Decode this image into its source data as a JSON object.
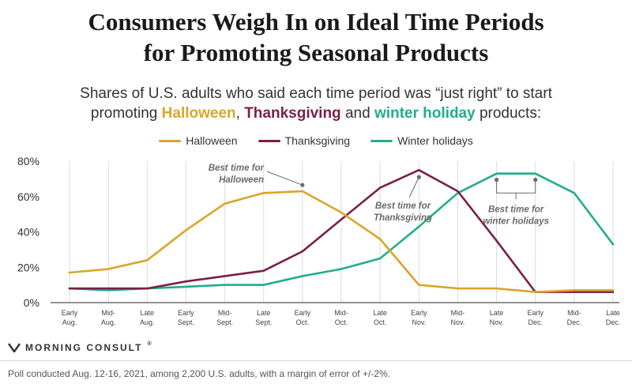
{
  "header": {
    "title_line1": "Consumers Weigh In on Ideal Time Periods",
    "title_line2": "for Promoting Seasonal Products",
    "subtitle_line1": "Shares of U.S. adults who said each time period was “just right” to start",
    "subtitle_prefix": "promoting ",
    "subtitle_halloween": "Halloween",
    "subtitle_comma": ", ",
    "subtitle_thanksgiving": "Thanksgiving",
    "subtitle_and": " and ",
    "subtitle_winter": "winter holiday",
    "subtitle_suffix": " products:"
  },
  "brand": {
    "name": "MORNING CONSULT",
    "mark": "®"
  },
  "footnote": "Poll conducted Aug. 12-16, 2021, among 2,200 U.S. adults, with a margin of error of +/-2%.",
  "colors": {
    "halloween": "#d9a62b",
    "thanksgiving": "#7a1f48",
    "winter": "#1fae8c",
    "grid": "#dcdcdc",
    "annotation": "#6b6b6b"
  },
  "chart_data": {
    "type": "line",
    "title": "Consumers Weigh In on Ideal Time Periods for Promoting Seasonal Products",
    "ylim": [
      0,
      80
    ],
    "yticks": [
      "0%",
      "20%",
      "40%",
      "60%",
      "80%"
    ],
    "ytick_values": [
      0,
      20,
      40,
      60,
      80
    ],
    "grid": "vertical",
    "legend_position": "top",
    "categories": [
      [
        "Early",
        "Aug."
      ],
      [
        "Mid-",
        "Aug."
      ],
      [
        "Late",
        "Aug."
      ],
      [
        "Early",
        "Sept."
      ],
      [
        "Mid-",
        "Sept."
      ],
      [
        "Late",
        "Sept."
      ],
      [
        "Early",
        "Oct."
      ],
      [
        "Mid-",
        "Oct."
      ],
      [
        "Late",
        "Oct."
      ],
      [
        "Early",
        "Nov."
      ],
      [
        "Mid-",
        "Nov."
      ],
      [
        "Late",
        "Nov."
      ],
      [
        "Early",
        "Dec."
      ],
      [
        "Mid-",
        "Dec."
      ],
      [
        "Late",
        "Dec."
      ]
    ],
    "series": [
      {
        "name": "Halloween",
        "color": "#d9a62b",
        "values": [
          17,
          19,
          24,
          41,
          56,
          62,
          63,
          51,
          36,
          10,
          8,
          8,
          6,
          7,
          7
        ]
      },
      {
        "name": "Thanksgiving",
        "color": "#7a1f48",
        "values": [
          8,
          8,
          8,
          12,
          15,
          18,
          29,
          47,
          65,
          75,
          63,
          35,
          6,
          6,
          6
        ]
      },
      {
        "name": "Winter holidays",
        "color": "#1fae8c",
        "values": [
          8,
          7,
          8,
          9,
          10,
          10,
          15,
          19,
          25,
          43,
          62,
          73,
          73,
          62,
          33
        ]
      }
    ],
    "annotations": [
      {
        "lines": [
          "Best time for",
          "Halloween"
        ],
        "points": [
          6
        ]
      },
      {
        "lines": [
          "Best time for",
          "Thanksgiving"
        ],
        "points": [
          9
        ]
      },
      {
        "lines": [
          "Best time for",
          "winter holidays"
        ],
        "points": [
          11,
          12
        ]
      }
    ]
  }
}
